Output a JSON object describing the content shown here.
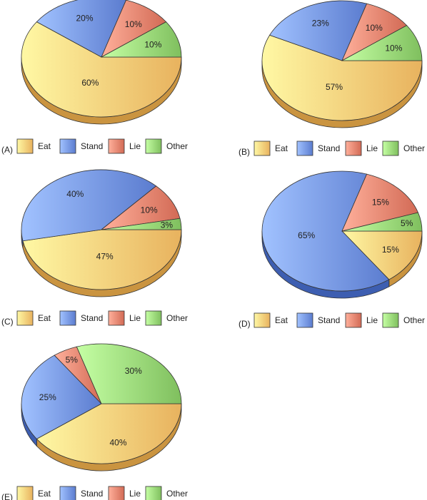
{
  "colors": {
    "Eat": "#e8b25e",
    "Stand": "#5b7ccf",
    "Lie": "#d26a55",
    "Other": "#7fbf5e"
  },
  "legend_labels": [
    "Eat",
    "Stand",
    "Lie",
    "Other"
  ],
  "chart_data": [
    {
      "type": "pie",
      "panel": "(A)",
      "categories": [
        "Eat",
        "Stand",
        "Lie",
        "Other"
      ],
      "values": [
        60,
        20,
        10,
        10
      ],
      "value_labels": [
        "60%",
        "20%",
        "10%",
        "10%"
      ]
    },
    {
      "type": "pie",
      "panel": "(B)",
      "categories": [
        "Eat",
        "Stand",
        "Lie",
        "Other"
      ],
      "values": [
        57,
        23,
        10,
        10
      ],
      "value_labels": [
        "57%",
        "23%",
        "10%",
        "10%"
      ]
    },
    {
      "type": "pie",
      "panel": "(C)",
      "categories": [
        "Eat",
        "Stand",
        "Lie",
        "Other"
      ],
      "values": [
        47,
        40,
        10,
        3
      ],
      "value_labels": [
        "47%",
        "40%",
        "10%",
        "3%"
      ]
    },
    {
      "type": "pie",
      "panel": "(D)",
      "categories": [
        "Eat",
        "Stand",
        "Lie",
        "Other"
      ],
      "values": [
        15,
        65,
        15,
        5
      ],
      "value_labels": [
        "15%",
        "65%",
        "15%",
        "5%"
      ]
    },
    {
      "type": "pie",
      "panel": "(E)",
      "categories": [
        "Eat",
        "Stand",
        "Lie",
        "Other"
      ],
      "values": [
        40,
        25,
        5,
        30
      ],
      "value_labels": [
        "40%",
        "25%",
        "5%",
        "30%"
      ]
    }
  ]
}
